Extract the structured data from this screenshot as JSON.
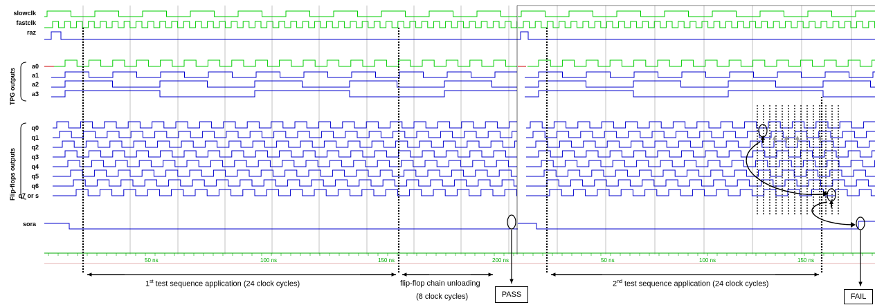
{
  "signals": {
    "slowclk": "slowclk",
    "fastclk": "fastclk",
    "raz": "raz",
    "a0": "a0",
    "a1": "a1",
    "a2": "a2",
    "a3": "a3",
    "q0": "q0",
    "q1": "q1",
    "q2": "q2",
    "q3": "q3",
    "q4": "q4",
    "q5": "q5",
    "q6": "q6",
    "q7": "q7 or s",
    "sora": "sora"
  },
  "groups": {
    "tpg": "TPG outputs",
    "ff": "Flip-flops outputs"
  },
  "time_axis": {
    "ticks_left": [
      "50 ns",
      "100 ns",
      "150 ns",
      "200 ns"
    ],
    "ticks_right": [
      "50 ns",
      "100 ns",
      "150 ns"
    ]
  },
  "annotations": {
    "phase1_pre": "1",
    "phase1_sup": "st",
    "phase1_post": " test sequence application (24 clock cycles)",
    "phase2_line1": "flip-flop chain unloading",
    "phase2_line2": "(8 clock cycles)",
    "phase3_pre": "2",
    "phase3_sup": "nd",
    "phase3_post": " test sequence application (24 clock cycles)",
    "pass": "PASS",
    "fail": "FAIL"
  },
  "colors": {
    "clock": "#00cc00",
    "signal": "#0000cc",
    "grid": "#999999",
    "axis": "#00aa00",
    "marker": "#000000"
  }
}
